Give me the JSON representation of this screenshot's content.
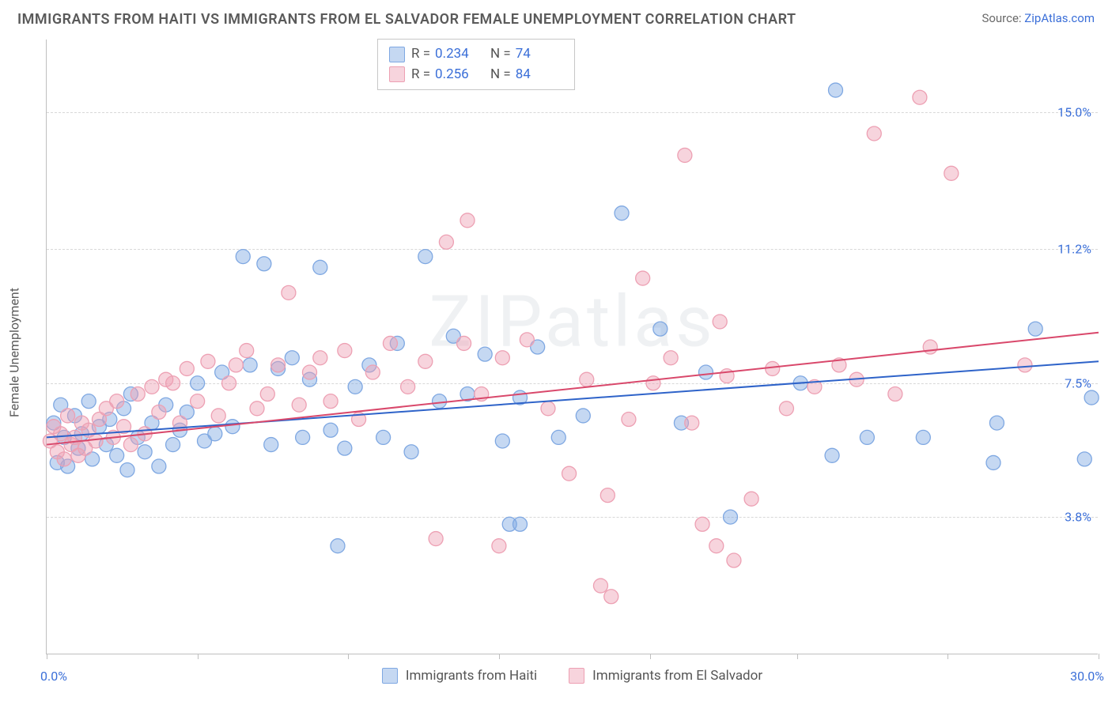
{
  "title": "IMMIGRANTS FROM HAITI VS IMMIGRANTS FROM EL SALVADOR FEMALE UNEMPLOYMENT CORRELATION CHART",
  "source_prefix": "Source: ",
  "source_link": "ZipAtlas.com",
  "watermark": "ZIPatlas",
  "ylabel": "Female Unemployment",
  "chart": {
    "type": "scatter",
    "background_color": "#ffffff",
    "grid_color": "#d8d8d8",
    "axis_color": "#bfbfbf",
    "value_color": "#3b6fd8",
    "text_color": "#5a5a5a",
    "xlim": [
      0,
      30
    ],
    "ylim": [
      0,
      17
    ],
    "xaxis_min_label": "0.0%",
    "xaxis_max_label": "30.0%",
    "gridlines": [
      3.8,
      7.5,
      11.2,
      15.0
    ],
    "grid_labels": [
      "3.8%",
      "7.5%",
      "11.2%",
      "15.0%"
    ],
    "xticks": [
      0,
      4.3,
      8.6,
      12.9,
      17.2,
      21.4,
      25.7,
      30
    ],
    "marker_radius": 9,
    "marker_opacity": 0.55,
    "line_width": 2
  },
  "series": [
    {
      "key": "haiti",
      "label": "Immigrants from Haiti",
      "color": "#7fa8e2",
      "line_color": "#2e63c9",
      "fill": "rgba(127,168,226,0.45)",
      "r": "0.234",
      "n": "74",
      "trend": {
        "y_at_xmin": 6.0,
        "y_at_xmax": 8.1
      },
      "points": [
        [
          0.2,
          6.4
        ],
        [
          0.3,
          5.3
        ],
        [
          0.4,
          6.9
        ],
        [
          0.5,
          6.0
        ],
        [
          0.6,
          5.2
        ],
        [
          0.8,
          6.6
        ],
        [
          0.9,
          5.7
        ],
        [
          1.0,
          6.1
        ],
        [
          1.2,
          7.0
        ],
        [
          1.3,
          5.4
        ],
        [
          1.5,
          6.3
        ],
        [
          1.7,
          5.8
        ],
        [
          1.8,
          6.5
        ],
        [
          2.0,
          5.5
        ],
        [
          2.2,
          6.8
        ],
        [
          2.3,
          5.1
        ],
        [
          2.4,
          7.2
        ],
        [
          2.6,
          6.0
        ],
        [
          2.8,
          5.6
        ],
        [
          3.0,
          6.4
        ],
        [
          3.2,
          5.2
        ],
        [
          3.4,
          6.9
        ],
        [
          3.6,
          5.8
        ],
        [
          3.8,
          6.2
        ],
        [
          4.0,
          6.7
        ],
        [
          4.3,
          7.5
        ],
        [
          4.5,
          5.9
        ],
        [
          4.8,
          6.1
        ],
        [
          5.0,
          7.8
        ],
        [
          5.3,
          6.3
        ],
        [
          5.6,
          11.0
        ],
        [
          5.8,
          8.0
        ],
        [
          6.2,
          10.8
        ],
        [
          6.4,
          5.8
        ],
        [
          6.6,
          7.9
        ],
        [
          7.0,
          8.2
        ],
        [
          7.3,
          6.0
        ],
        [
          7.5,
          7.6
        ],
        [
          7.8,
          10.7
        ],
        [
          8.1,
          6.2
        ],
        [
          8.3,
          3.0
        ],
        [
          8.5,
          5.7
        ],
        [
          8.8,
          7.4
        ],
        [
          9.2,
          8.0
        ],
        [
          9.6,
          6.0
        ],
        [
          10.0,
          8.6
        ],
        [
          10.4,
          5.6
        ],
        [
          10.8,
          11.0
        ],
        [
          11.2,
          7.0
        ],
        [
          11.6,
          8.8
        ],
        [
          12.0,
          7.2
        ],
        [
          12.5,
          8.3
        ],
        [
          13.0,
          5.9
        ],
        [
          13.2,
          3.6
        ],
        [
          13.5,
          7.1
        ],
        [
          13.5,
          3.6
        ],
        [
          14.0,
          8.5
        ],
        [
          14.6,
          6.0
        ],
        [
          15.3,
          6.6
        ],
        [
          16.4,
          12.2
        ],
        [
          17.5,
          9.0
        ],
        [
          18.1,
          6.4
        ],
        [
          18.8,
          7.8
        ],
        [
          19.5,
          3.8
        ],
        [
          21.5,
          7.5
        ],
        [
          22.4,
          5.5
        ],
        [
          22.5,
          15.6
        ],
        [
          23.4,
          6.0
        ],
        [
          25.0,
          6.0
        ],
        [
          27.0,
          5.3
        ],
        [
          27.1,
          6.4
        ],
        [
          28.2,
          9.0
        ],
        [
          29.8,
          7.1
        ],
        [
          29.6,
          5.4
        ]
      ]
    },
    {
      "key": "elsalvador",
      "label": "Immigrants from El Salvador",
      "color": "#eda0b3",
      "line_color": "#d9486b",
      "fill": "rgba(237,160,179,0.45)",
      "r": "0.256",
      "n": "84",
      "trend": {
        "y_at_xmin": 5.8,
        "y_at_xmax": 8.9
      },
      "points": [
        [
          0.1,
          5.9
        ],
        [
          0.2,
          6.3
        ],
        [
          0.3,
          5.6
        ],
        [
          0.4,
          6.1
        ],
        [
          0.5,
          5.4
        ],
        [
          0.6,
          6.6
        ],
        [
          0.7,
          5.8
        ],
        [
          0.8,
          6.0
        ],
        [
          0.9,
          5.5
        ],
        [
          1.0,
          6.4
        ],
        [
          1.1,
          5.7
        ],
        [
          1.2,
          6.2
        ],
        [
          1.4,
          5.9
        ],
        [
          1.5,
          6.5
        ],
        [
          1.7,
          6.8
        ],
        [
          1.9,
          6.0
        ],
        [
          2.0,
          7.0
        ],
        [
          2.2,
          6.3
        ],
        [
          2.4,
          5.8
        ],
        [
          2.6,
          7.2
        ],
        [
          2.8,
          6.1
        ],
        [
          3.0,
          7.4
        ],
        [
          3.2,
          6.7
        ],
        [
          3.4,
          7.6
        ],
        [
          3.6,
          7.5
        ],
        [
          3.8,
          6.4
        ],
        [
          4.0,
          7.9
        ],
        [
          4.3,
          7.0
        ],
        [
          4.6,
          8.1
        ],
        [
          4.9,
          6.6
        ],
        [
          5.2,
          7.5
        ],
        [
          5.4,
          8.0
        ],
        [
          5.7,
          8.4
        ],
        [
          6.0,
          6.8
        ],
        [
          6.3,
          7.2
        ],
        [
          6.6,
          8.0
        ],
        [
          6.9,
          10.0
        ],
        [
          7.2,
          6.9
        ],
        [
          7.5,
          7.8
        ],
        [
          7.8,
          8.2
        ],
        [
          8.1,
          7.0
        ],
        [
          8.5,
          8.4
        ],
        [
          8.9,
          6.5
        ],
        [
          9.3,
          7.8
        ],
        [
          9.8,
          8.6
        ],
        [
          10.3,
          7.4
        ],
        [
          10.8,
          8.1
        ],
        [
          11.1,
          3.2
        ],
        [
          11.4,
          11.4
        ],
        [
          11.9,
          8.6
        ],
        [
          12.0,
          12.0
        ],
        [
          12.4,
          7.2
        ],
        [
          12.9,
          3.0
        ],
        [
          13.0,
          8.2
        ],
        [
          13.7,
          8.7
        ],
        [
          14.3,
          6.8
        ],
        [
          14.9,
          5.0
        ],
        [
          15.4,
          7.6
        ],
        [
          15.8,
          1.9
        ],
        [
          16.0,
          4.4
        ],
        [
          16.1,
          1.6
        ],
        [
          16.6,
          6.5
        ],
        [
          17.0,
          10.4
        ],
        [
          17.3,
          7.5
        ],
        [
          17.8,
          8.2
        ],
        [
          18.2,
          13.8
        ],
        [
          18.4,
          6.4
        ],
        [
          18.7,
          3.6
        ],
        [
          19.1,
          3.0
        ],
        [
          19.2,
          9.2
        ],
        [
          19.4,
          7.7
        ],
        [
          19.6,
          2.6
        ],
        [
          20.1,
          4.3
        ],
        [
          20.7,
          7.9
        ],
        [
          21.1,
          6.8
        ],
        [
          21.9,
          7.4
        ],
        [
          22.6,
          8.0
        ],
        [
          23.1,
          7.6
        ],
        [
          23.6,
          14.4
        ],
        [
          24.2,
          7.2
        ],
        [
          24.9,
          15.4
        ],
        [
          25.2,
          8.5
        ],
        [
          25.8,
          13.3
        ],
        [
          27.9,
          8.0
        ]
      ]
    }
  ],
  "legend_labels": {
    "R": "R =",
    "N": "N ="
  }
}
